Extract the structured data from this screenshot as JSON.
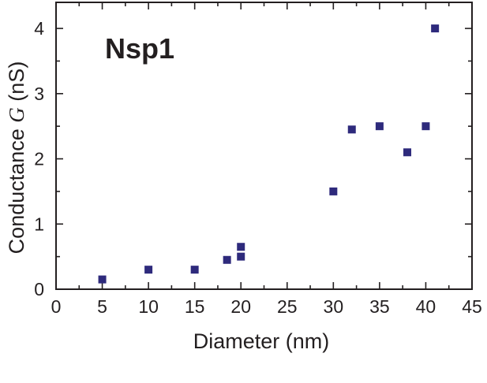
{
  "chart_data": {
    "type": "scatter",
    "title": "Nsp1",
    "xlabel": "Diameter (nm)",
    "ylabel_prefix": "Conductance ",
    "ylabel_symbol": "G",
    "ylabel_suffix": " (nS)",
    "xlim": [
      0,
      45
    ],
    "ylim": [
      0,
      4.4
    ],
    "xticks": [
      "0",
      "5",
      "10",
      "15",
      "20",
      "25",
      "30",
      "35",
      "40",
      "45"
    ],
    "xtick_values": [
      0,
      5,
      10,
      15,
      20,
      25,
      30,
      35,
      40,
      45
    ],
    "yticks": [
      "0",
      "1",
      "2",
      "3",
      "4"
    ],
    "ytick_values": [
      0,
      1,
      2,
      3,
      4
    ],
    "grid": false,
    "marker_color": "#2e2a7c",
    "series": [
      {
        "points": [
          {
            "x": 5,
            "y": 0.15
          },
          {
            "x": 10,
            "y": 0.3
          },
          {
            "x": 15,
            "y": 0.3
          },
          {
            "x": 18.5,
            "y": 0.45
          },
          {
            "x": 20,
            "y": 0.5
          },
          {
            "x": 20,
            "y": 0.65
          },
          {
            "x": 30,
            "y": 1.5
          },
          {
            "x": 32,
            "y": 2.45
          },
          {
            "x": 35,
            "y": 2.5
          },
          {
            "x": 38,
            "y": 2.1
          },
          {
            "x": 40,
            "y": 2.5
          },
          {
            "x": 41,
            "y": 4.0
          }
        ]
      }
    ]
  }
}
